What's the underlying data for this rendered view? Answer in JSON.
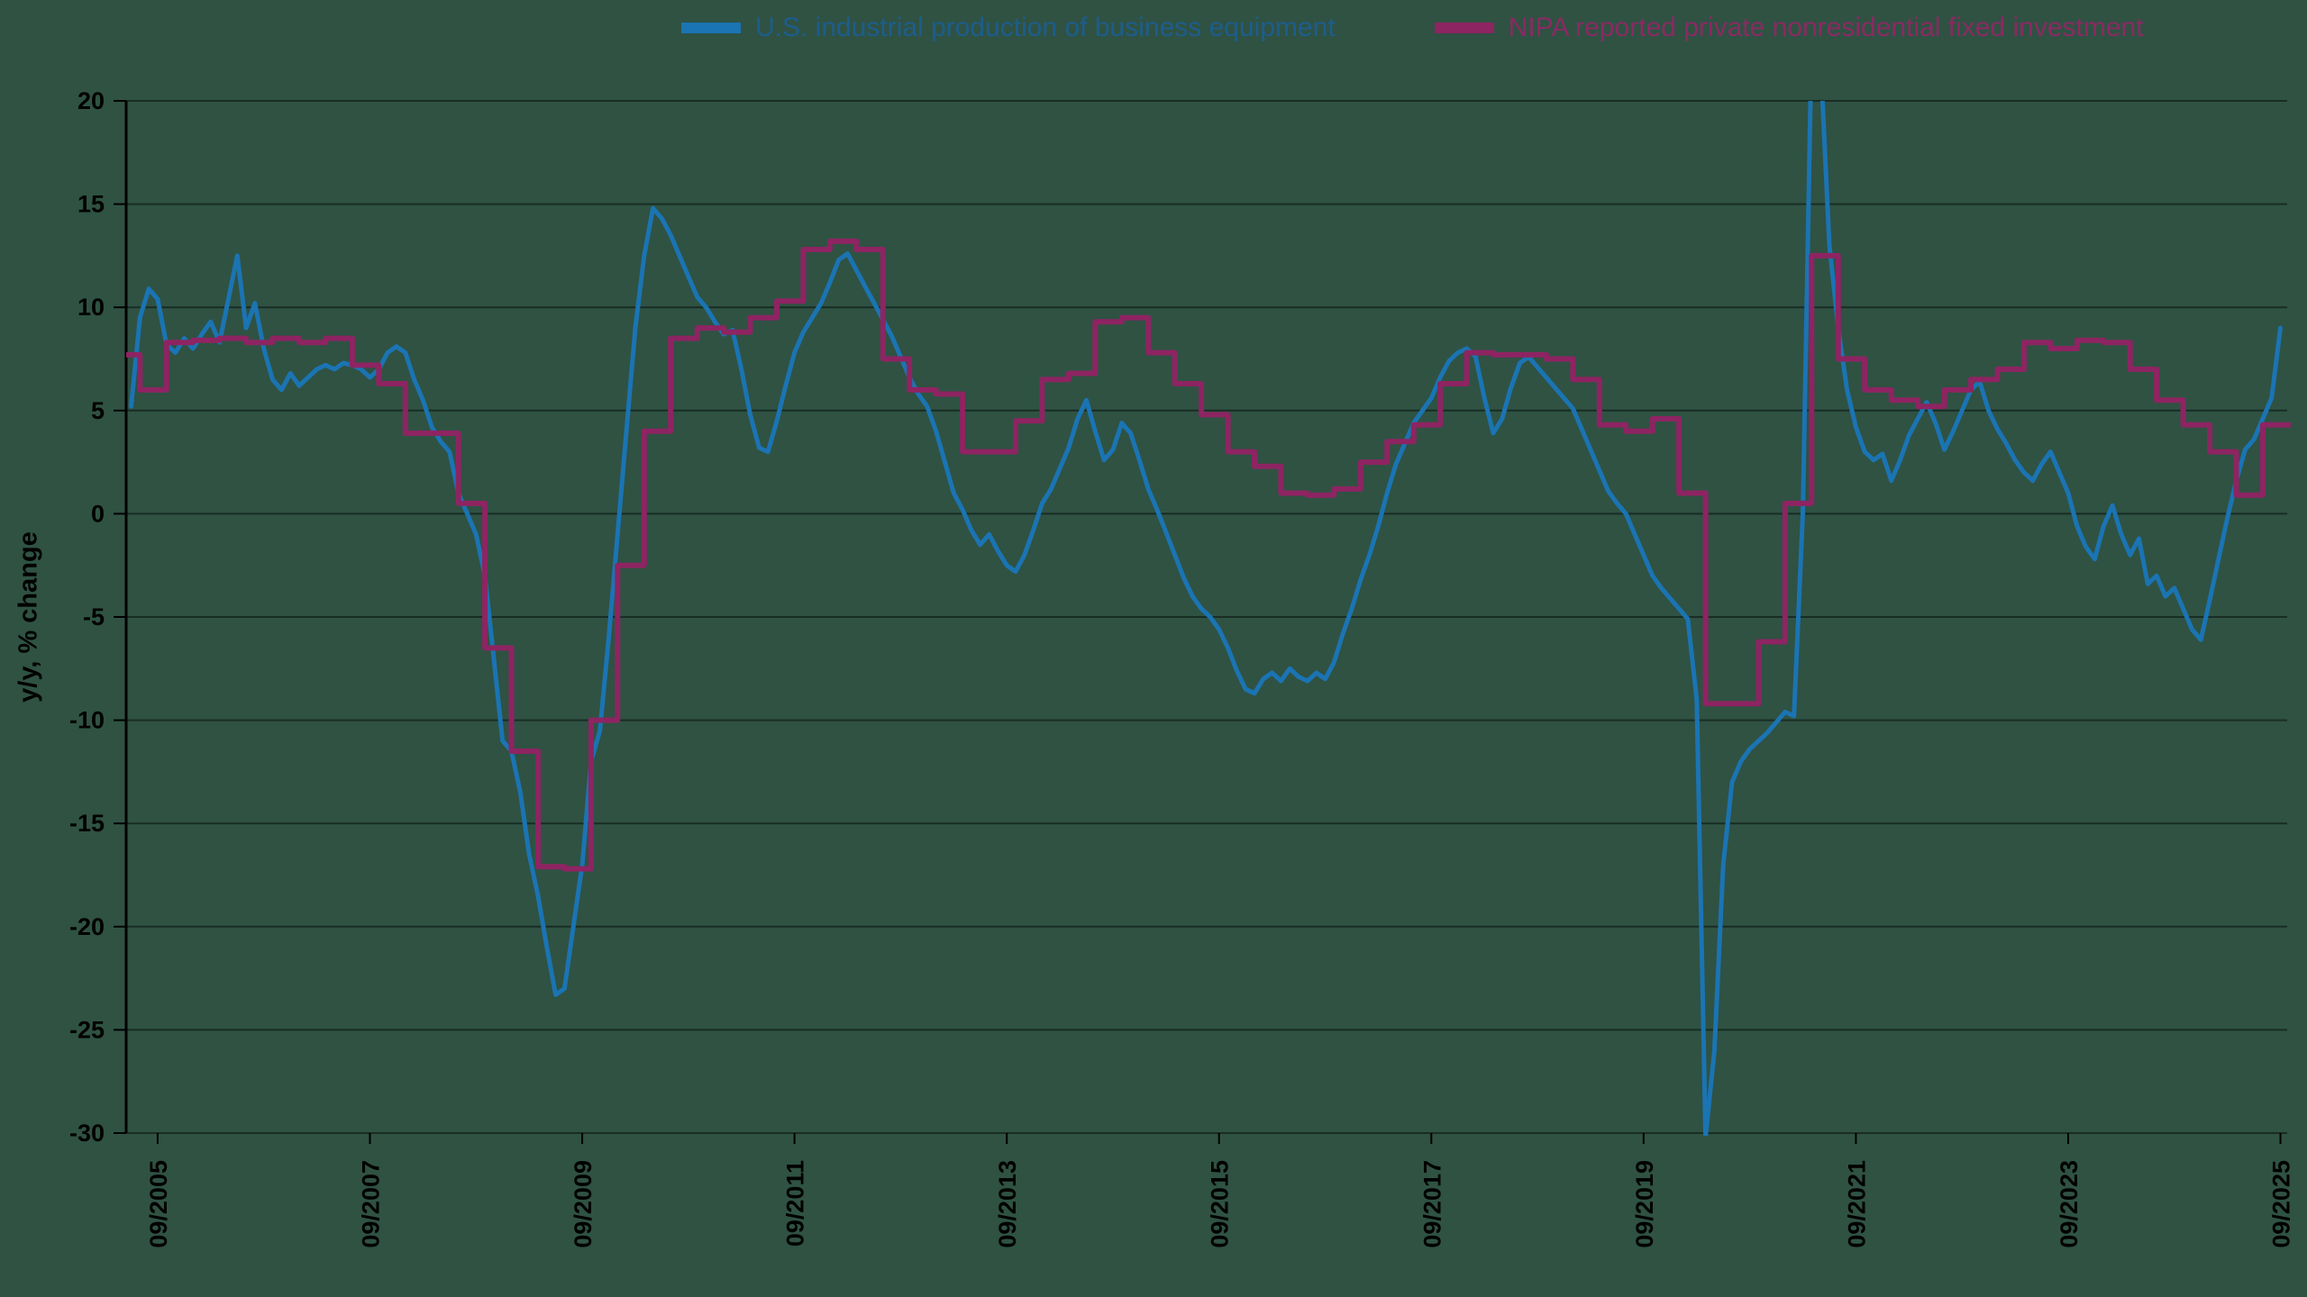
{
  "colors": {
    "background": "#2F5243",
    "grid": "rgba(0,0,0,0.45)",
    "axis": "#000000",
    "tick_text": "#000000"
  },
  "chart_data": {
    "type": "line",
    "title": "",
    "ylabel": "y/y, % change",
    "ylim": [
      -30,
      20
    ],
    "grid": "horizontal",
    "legend_position": "top",
    "y_ticks": [
      20,
      15,
      10,
      5,
      0,
      -5,
      -10,
      -15,
      -20,
      -25,
      -30
    ],
    "x_tick_labels": [
      "09/2005",
      "09/2007",
      "09/2009",
      "09/2011",
      "09/2013",
      "09/2015",
      "09/2017",
      "09/2019",
      "09/2021",
      "09/2023",
      "09/2025"
    ],
    "series": [
      {
        "name": "U.S. industrial production of business equipment",
        "color": "#1B74B3",
        "label_color": "#1D5D8D",
        "style": "line",
        "width": 5,
        "freq": "monthly",
        "start_year": 2005,
        "start_month": 6,
        "values": [
          5.2,
          9.5,
          10.9,
          10.4,
          8.2,
          7.8,
          8.5,
          8.0,
          8.7,
          9.3,
          8.3,
          10.4,
          12.5,
          9.0,
          10.2,
          8.0,
          6.5,
          6.0,
          6.8,
          6.2,
          6.6,
          7.0,
          7.2,
          7.0,
          7.3,
          7.2,
          7.0,
          6.6,
          7.0,
          7.8,
          8.1,
          7.8,
          6.5,
          5.5,
          4.2,
          3.5,
          3.0,
          1.0,
          0.0,
          -1.0,
          -3.0,
          -7.0,
          -11.0,
          -11.5,
          -13.5,
          -16.5,
          -18.5,
          -21.0,
          -23.3,
          -23.0,
          -20.0,
          -17.0,
          -12.0,
          -10.5,
          -6.0,
          -1.0,
          4.0,
          9.0,
          12.5,
          14.8,
          14.3,
          13.5,
          12.5,
          11.5,
          10.5,
          10.0,
          9.3,
          8.7,
          8.9,
          7.0,
          4.8,
          3.2,
          3.0,
          4.5,
          6.2,
          7.8,
          8.8,
          9.5,
          10.2,
          11.2,
          12.3,
          12.6,
          11.8,
          11.0,
          10.2,
          9.4,
          8.6,
          7.6,
          6.6,
          5.8,
          5.2,
          4.0,
          2.5,
          1.0,
          0.2,
          -0.8,
          -1.5,
          -1.0,
          -1.8,
          -2.5,
          -2.8,
          -2.0,
          -0.8,
          0.5,
          1.2,
          2.2,
          3.2,
          4.6,
          5.5,
          4.0,
          2.6,
          3.1,
          4.4,
          3.9,
          2.6,
          1.2,
          0.2,
          -0.9,
          -2.0,
          -3.1,
          -4.0,
          -4.6,
          -5.0,
          -5.6,
          -6.5,
          -7.6,
          -8.5,
          -8.7,
          -8.0,
          -7.7,
          -8.1,
          -7.5,
          -7.9,
          -8.1,
          -7.7,
          -8.0,
          -7.2,
          -5.8,
          -4.6,
          -3.2,
          -2.0,
          -0.6,
          1.0,
          2.4,
          3.4,
          4.4,
          5.0,
          5.6,
          6.6,
          7.4,
          7.8,
          8.0,
          7.6,
          5.6,
          3.9,
          4.6,
          6.1,
          7.3,
          7.6,
          7.1,
          6.6,
          6.1,
          5.6,
          5.1,
          4.1,
          3.1,
          2.1,
          1.1,
          0.5,
          0.0,
          -1.0,
          -2.0,
          -3.0,
          -3.6,
          -4.1,
          -4.6,
          -5.1,
          -9.0,
          -30.2,
          -26.0,
          -17.0,
          -13.0,
          -12.0,
          -11.4,
          -11.0,
          -10.6,
          -10.1,
          -9.6,
          -9.8,
          0.0,
          23.0,
          22.0,
          13.0,
          9.0,
          6.0,
          4.2,
          3.0,
          2.6,
          2.9,
          1.6,
          2.6,
          3.8,
          4.6,
          5.4,
          4.4,
          3.1,
          4.0,
          5.0,
          6.0,
          6.4,
          5.0,
          4.1,
          3.4,
          2.6,
          2.0,
          1.6,
          2.4,
          3.0,
          2.0,
          1.0,
          -0.6,
          -1.6,
          -2.2,
          -0.6,
          0.4,
          -1.0,
          -2.0,
          -1.2,
          -3.4,
          -3.0,
          -4.0,
          -3.6,
          -4.6,
          -5.6,
          -6.1,
          -4.2,
          -2.2,
          -0.2,
          1.6,
          3.1,
          3.6,
          4.6,
          5.6,
          9.0
        ]
      },
      {
        "name": "NIPA reported private nonresidential fixed investment",
        "color": "#8E2462",
        "label_color": "#8A2A62",
        "style": "step",
        "width": 6,
        "freq": "quarterly",
        "start_year": 2005,
        "start_quarter": 2,
        "values": [
          7.7,
          6.0,
          8.3,
          8.4,
          8.5,
          8.3,
          8.5,
          8.3,
          8.5,
          7.2,
          6.3,
          3.9,
          3.9,
          0.5,
          -6.5,
          -11.5,
          -17.1,
          -17.2,
          -10.0,
          -2.5,
          4.0,
          8.5,
          9.0,
          8.8,
          9.5,
          10.3,
          12.8,
          13.2,
          12.8,
          7.5,
          6.0,
          5.8,
          3.0,
          3.0,
          4.5,
          6.5,
          6.8,
          9.3,
          9.5,
          7.8,
          6.3,
          4.8,
          3.0,
          2.3,
          1.0,
          0.9,
          1.2,
          2.5,
          3.5,
          4.3,
          6.3,
          7.8,
          7.7,
          7.7,
          7.5,
          6.5,
          4.3,
          4.0,
          4.6,
          1.0,
          -9.2,
          -9.2,
          -6.2,
          0.5,
          12.5,
          7.5,
          6.0,
          5.5,
          5.2,
          6.0,
          6.5,
          7.0,
          8.3,
          8.0,
          8.4,
          8.3,
          7.0,
          5.5,
          4.3,
          3.0,
          0.9,
          4.3
        ]
      }
    ]
  }
}
